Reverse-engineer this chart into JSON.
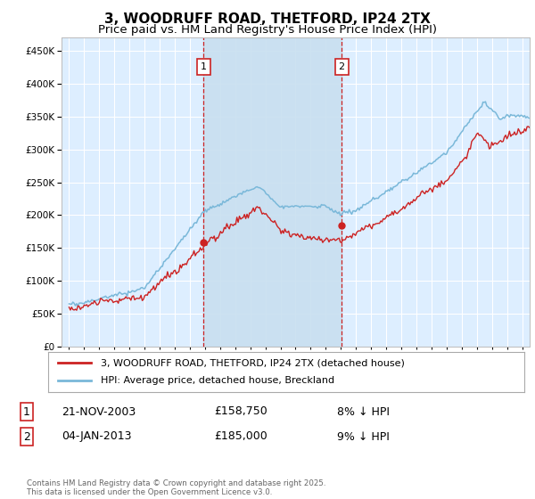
{
  "title": "3, WOODRUFF ROAD, THETFORD, IP24 2TX",
  "subtitle": "Price paid vs. HM Land Registry's House Price Index (HPI)",
  "hpi_legend": "HPI: Average price, detached house, Breckland",
  "property_legend": "3, WOODRUFF ROAD, THETFORD, IP24 2TX (detached house)",
  "footnote": "Contains HM Land Registry data © Crown copyright and database right 2025.\nThis data is licensed under the Open Government Licence v3.0.",
  "annotation1_date": "21-NOV-2003",
  "annotation1_price": "£158,750",
  "annotation1_hpi": "8% ↓ HPI",
  "annotation2_date": "04-JAN-2013",
  "annotation2_price": "£185,000",
  "annotation2_hpi": "9% ↓ HPI",
  "vline1_x": 2003.9,
  "vline2_x": 2013.05,
  "sale1_y": 158750,
  "sale2_y": 185000,
  "ylim": [
    0,
    470000
  ],
  "xlim_start": 1994.5,
  "xlim_end": 2025.5,
  "hpi_color": "#7ab8d9",
  "property_color": "#cc2222",
  "vline_color": "#cc2222",
  "shade_color": "#c8dff0",
  "plot_bg_color": "#ddeeff",
  "grid_color": "#ffffff",
  "title_fontsize": 11,
  "subtitle_fontsize": 9.5,
  "tick_fontsize": 7.5,
  "legend_fontsize": 8,
  "annot_fontsize": 9
}
